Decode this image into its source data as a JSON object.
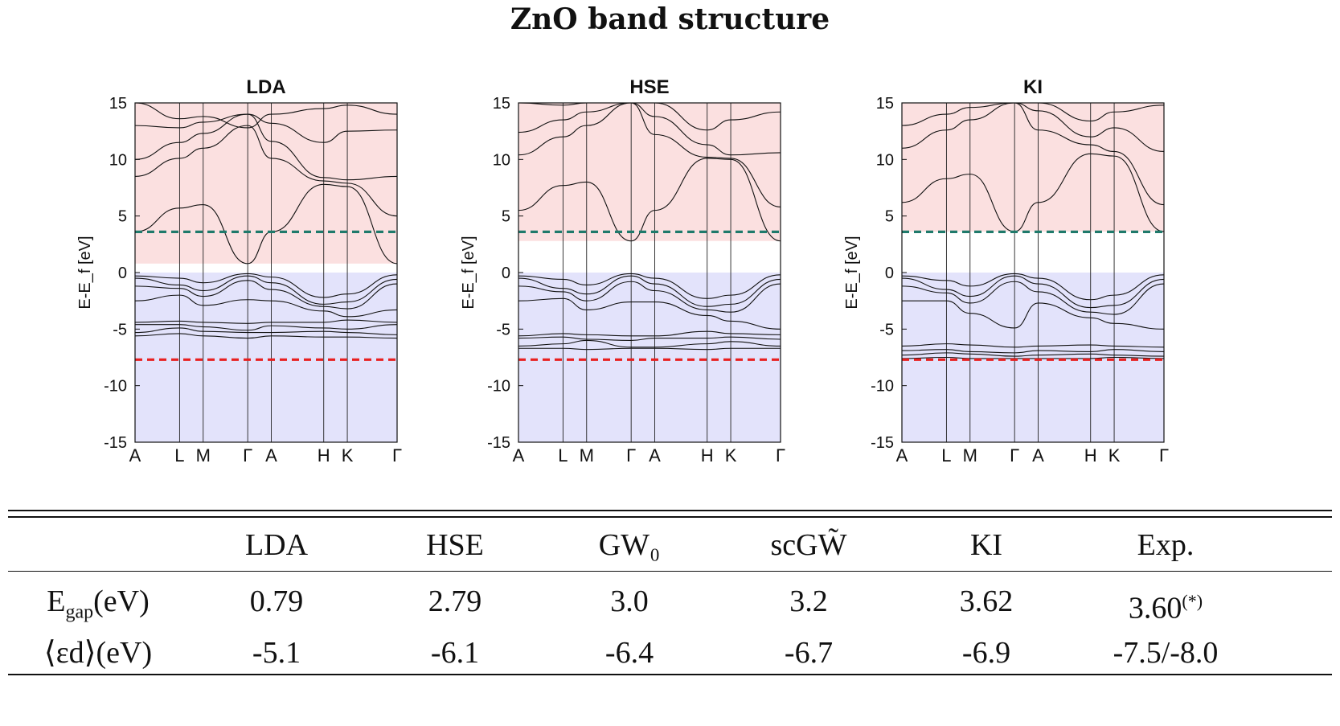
{
  "figure_title": "ZnO band structure",
  "chart_data": [
    {
      "type": "line",
      "title": "LDA",
      "ylabel": "E-E_f [eV]",
      "ylim": [
        -15,
        15
      ],
      "yticks": [
        15,
        10,
        5,
        0,
        -5,
        -10,
        -15
      ],
      "kpoints": [
        {
          "label": "A",
          "x": 0
        },
        {
          "label": "L",
          "x": 0.17
        },
        {
          "label": "M",
          "x": 0.26
        },
        {
          "label": "Γ",
          "x": 0.43
        },
        {
          "label": "A",
          "x": 0.52
        },
        {
          "label": "H",
          "x": 0.72
        },
        {
          "label": "K",
          "x": 0.81
        },
        {
          "label": "Γ",
          "x": 1
        }
      ],
      "shaded": {
        "conduction_from": 0.79,
        "valence_to": 0
      },
      "dashed_lines": [
        {
          "y": 3.6,
          "color": "#1f7a6b"
        },
        {
          "y": -7.7,
          "color": "#e82020"
        }
      ],
      "valence_bands": [
        [
          -0.3,
          -0.5,
          -0.9,
          -0.1,
          -0.4,
          -2.2,
          -1.9,
          -0.2
        ],
        [
          -0.5,
          -1.1,
          -1.6,
          -0.3,
          -0.9,
          -2.8,
          -2.6,
          -0.6
        ],
        [
          -1.2,
          -1.4,
          -2.1,
          -0.7,
          -1.5,
          -3.0,
          -3.2,
          -1.0
        ],
        [
          -2.5,
          -2.0,
          -2.9,
          -2.4,
          -2.5,
          -3.4,
          -3.9,
          -3.3
        ],
        [
          -4.4,
          -4.3,
          -4.4,
          -4.5,
          -4.4,
          -4.4,
          -4.2,
          -4.4
        ],
        [
          -4.6,
          -4.6,
          -4.8,
          -5.1,
          -4.7,
          -4.9,
          -5.0,
          -4.6
        ],
        [
          -5.3,
          -4.9,
          -5.2,
          -5.3,
          -5.3,
          -5.2,
          -5.3,
          -5.5
        ],
        [
          -5.6,
          -5.4,
          -5.6,
          -5.8,
          -5.6,
          -5.7,
          -5.7,
          -5.8
        ]
      ],
      "conduction_bands": [
        [
          3.6,
          5.7,
          6.0,
          0.79,
          3.6,
          7.8,
          7.6,
          0.79
        ],
        [
          8.5,
          10.1,
          11.0,
          13.0,
          10.1,
          8.1,
          7.9,
          5.0
        ],
        [
          10.0,
          11.5,
          12.3,
          14.0,
          11.6,
          8.4,
          8.2,
          8.5
        ],
        [
          13.0,
          12.8,
          13.3,
          14.0,
          13.2,
          11.5,
          12.5,
          12.6
        ],
        [
          15.0,
          13.6,
          13.8,
          12.8,
          14.0,
          14.5,
          14.8,
          14.0
        ]
      ]
    },
    {
      "type": "line",
      "title": "HSE",
      "ylabel": "E-E_f [eV]",
      "ylim": [
        -15,
        15
      ],
      "yticks": [
        15,
        10,
        5,
        0,
        -5,
        -10,
        -15
      ],
      "kpoints": [
        {
          "label": "A",
          "x": 0
        },
        {
          "label": "L",
          "x": 0.17
        },
        {
          "label": "M",
          "x": 0.26
        },
        {
          "label": "Γ",
          "x": 0.43
        },
        {
          "label": "A",
          "x": 0.52
        },
        {
          "label": "H",
          "x": 0.72
        },
        {
          "label": "K",
          "x": 0.81
        },
        {
          "label": "Γ",
          "x": 1
        }
      ],
      "shaded": {
        "conduction_from": 2.79,
        "valence_to": 0
      },
      "dashed_lines": [
        {
          "y": 3.6,
          "color": "#1f7a6b"
        },
        {
          "y": -7.7,
          "color": "#e82020"
        }
      ],
      "valence_bands": [
        [
          -0.3,
          -0.6,
          -1.1,
          -0.1,
          -0.5,
          -2.3,
          -2.0,
          -0.2
        ],
        [
          -0.5,
          -1.4,
          -1.9,
          -0.3,
          -1.0,
          -3.0,
          -2.8,
          -0.6
        ],
        [
          -1.2,
          -1.7,
          -2.5,
          -0.8,
          -1.6,
          -3.3,
          -3.5,
          -1.0
        ],
        [
          -2.5,
          -2.3,
          -3.3,
          -2.6,
          -2.6,
          -3.8,
          -4.3,
          -5.0
        ],
        [
          -5.6,
          -5.4,
          -5.5,
          -5.6,
          -5.6,
          -5.2,
          -5.4,
          -5.5
        ],
        [
          -5.8,
          -5.7,
          -5.9,
          -6.0,
          -5.8,
          -5.8,
          -5.7,
          -5.9
        ],
        [
          -6.5,
          -6.3,
          -6.0,
          -6.6,
          -6.6,
          -6.3,
          -6.1,
          -6.5
        ],
        [
          -6.7,
          -6.7,
          -6.8,
          -6.7,
          -6.7,
          -6.8,
          -6.7,
          -6.7
        ]
      ],
      "conduction_bands": [
        [
          5.5,
          7.7,
          8.0,
          2.79,
          5.5,
          10.1,
          10.0,
          2.79
        ],
        [
          10.4,
          12.0,
          13.0,
          15.0,
          12.2,
          10.2,
          10.1,
          5.8
        ],
        [
          12.4,
          13.5,
          14.2,
          15.0,
          13.8,
          11.3,
          10.4,
          10.6
        ],
        [
          15.0,
          14.8,
          15.0,
          15.0,
          15.0,
          12.6,
          13.5,
          14.2
        ]
      ]
    },
    {
      "type": "line",
      "title": "KI",
      "ylabel": "E-E_f [eV]",
      "ylim": [
        -15,
        15
      ],
      "yticks": [
        15,
        10,
        5,
        0,
        -5,
        -10,
        -15
      ],
      "kpoints": [
        {
          "label": "A",
          "x": 0
        },
        {
          "label": "L",
          "x": 0.17
        },
        {
          "label": "M",
          "x": 0.26
        },
        {
          "label": "Γ",
          "x": 0.43
        },
        {
          "label": "A",
          "x": 0.52
        },
        {
          "label": "H",
          "x": 0.72
        },
        {
          "label": "K",
          "x": 0.81
        },
        {
          "label": "Γ",
          "x": 1
        }
      ],
      "shaded": {
        "conduction_from": 3.62,
        "valence_to": 0
      },
      "dashed_lines": [
        {
          "y": 3.6,
          "color": "#1f7a6b"
        },
        {
          "y": -7.7,
          "color": "#e82020"
        }
      ],
      "valence_bands": [
        [
          -0.3,
          -0.7,
          -1.2,
          -0.1,
          -0.5,
          -2.4,
          -2.0,
          -0.2
        ],
        [
          -0.5,
          -1.5,
          -2.1,
          -0.3,
          -1.0,
          -3.1,
          -2.9,
          -0.6
        ],
        [
          -1.2,
          -1.8,
          -2.7,
          -0.8,
          -1.7,
          -3.5,
          -3.7,
          -1.0
        ],
        [
          -2.5,
          -2.5,
          -3.6,
          -4.9,
          -2.7,
          -4.0,
          -4.5,
          -5.0
        ],
        [
          -6.5,
          -6.3,
          -6.4,
          -6.6,
          -6.5,
          -6.4,
          -6.5,
          -6.6
        ],
        [
          -6.9,
          -6.8,
          -7.0,
          -7.1,
          -6.9,
          -7.0,
          -6.8,
          -7.0
        ],
        [
          -7.3,
          -7.1,
          -7.2,
          -7.4,
          -7.3,
          -7.2,
          -7.3,
          -7.4
        ],
        [
          -7.6,
          -7.5,
          -7.6,
          -7.6,
          -7.6,
          -7.6,
          -7.5,
          -7.6
        ]
      ],
      "conduction_bands": [
        [
          6.2,
          8.3,
          8.7,
          3.62,
          6.2,
          10.5,
          10.3,
          3.62
        ],
        [
          11.0,
          12.6,
          13.5,
          15.0,
          12.6,
          11.3,
          10.7,
          6.0
        ],
        [
          13.0,
          14.0,
          14.6,
          15.0,
          14.3,
          12.0,
          12.8,
          10.7
        ],
        [
          15.0,
          15.0,
          15.0,
          15.0,
          15.0,
          13.4,
          14.2,
          14.8
        ]
      ]
    }
  ],
  "table": {
    "headers": [
      "",
      "LDA",
      "HSE",
      "GW₀",
      "scGW̃",
      "KI",
      "Exp."
    ],
    "rows": [
      {
        "label_main": "E",
        "label_sub": "gap",
        "label_rest": "(eV)",
        "values": [
          "0.79",
          "2.79",
          "3.0",
          "3.2",
          "3.62",
          "3.60"
        ],
        "last_sup": "(*)"
      },
      {
        "label_main": "⟨εd⟩(eV)",
        "values": [
          "-5.1",
          "-6.1",
          "-6.4",
          "-6.7",
          "-6.9",
          "-7.5/-8.0"
        ]
      }
    ]
  },
  "colors": {
    "conduction_fill": "#fbe0e0",
    "valence_fill": "#e3e3fb",
    "band_line": "#111111"
  }
}
